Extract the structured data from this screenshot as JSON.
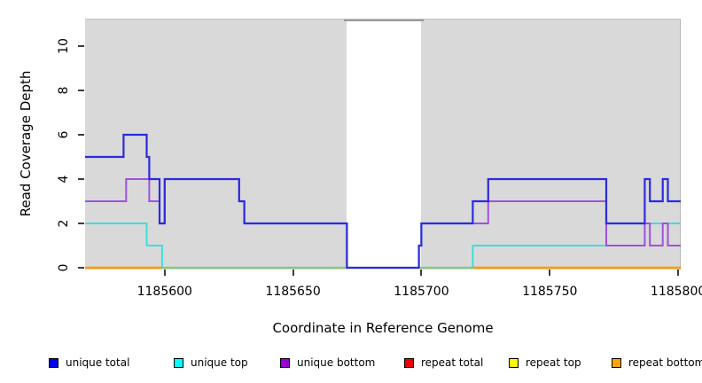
{
  "figure": {
    "background": "#ffffff"
  },
  "axes": {
    "y_title": "Read Coverage Depth",
    "x_title": "Coordinate in Reference Genome"
  },
  "chart_data": {
    "type": "line",
    "step": true,
    "title": "",
    "xlabel": "Coordinate in Reference Genome",
    "ylabel": "Read Coverage Depth",
    "xlim": [
      1185569,
      1185801
    ],
    "ylim": [
      0,
      11.24
    ],
    "grid": false,
    "plot_bg": "#d9d9d9",
    "xticks": [
      {
        "value": 1185600,
        "label": "1185600"
      },
      {
        "value": 1185650,
        "label": "1185650"
      },
      {
        "value": 1185700,
        "label": "1185700"
      },
      {
        "value": 1185750,
        "label": "1185750"
      },
      {
        "value": 1185800,
        "label": "1185800"
      }
    ],
    "yticks": [
      {
        "value": 0,
        "label": "0"
      },
      {
        "value": 2,
        "label": "2"
      },
      {
        "value": 4,
        "label": "4"
      },
      {
        "value": 6,
        "label": "6"
      },
      {
        "value": 8,
        "label": "8"
      },
      {
        "value": 10,
        "label": "10"
      }
    ],
    "uncovered_gap": {
      "from": 1185671,
      "to": 1185700,
      "fill": "#ffffff",
      "top_edge_color": "#999999"
    },
    "series": [
      {
        "name": "unique total",
        "color": "#2b2be0",
        "legend_color": "#0000ee",
        "steps": [
          [
            1185569,
            5
          ],
          [
            1185584,
            6
          ],
          [
            1185593,
            5
          ],
          [
            1185594,
            4
          ],
          [
            1185598,
            2
          ],
          [
            1185600,
            4
          ],
          [
            1185629,
            3
          ],
          [
            1185631,
            2
          ],
          [
            1185671,
            0
          ],
          [
            1185699,
            1
          ],
          [
            1185700,
            2
          ],
          [
            1185720,
            3
          ],
          [
            1185726,
            4
          ],
          [
            1185772,
            2
          ],
          [
            1185787,
            4
          ],
          [
            1185789,
            3
          ],
          [
            1185794,
            4
          ],
          [
            1185796,
            3
          ]
        ],
        "end": 1185801
      },
      {
        "name": "unique top",
        "color": "#3fdede",
        "legend_color": "#00ffff",
        "steps": [
          [
            1185569,
            2
          ],
          [
            1185593,
            1
          ],
          [
            1185599,
            0
          ],
          [
            1185720,
            1
          ],
          [
            1185787,
            2
          ]
        ],
        "end": 1185801
      },
      {
        "name": "unique bottom",
        "color": "#a050e0",
        "legend_color": "#9a00d3",
        "steps": [
          [
            1185569,
            3
          ],
          [
            1185585,
            4
          ],
          [
            1185594,
            3
          ],
          [
            1185598,
            2
          ],
          [
            1185600,
            4
          ],
          [
            1185629,
            3
          ],
          [
            1185631,
            2
          ],
          [
            1185671,
            0
          ],
          [
            1185699,
            1
          ],
          [
            1185700,
            2
          ],
          [
            1185726,
            3
          ],
          [
            1185772,
            1
          ],
          [
            1185787,
            2
          ],
          [
            1185789,
            1
          ],
          [
            1185794,
            2
          ],
          [
            1185796,
            1
          ]
        ],
        "end": 1185801
      },
      {
        "name": "repeat total",
        "color": "#dd1111",
        "legend_color": "#ee0000",
        "steps": [
          [
            1185569,
            0
          ]
        ],
        "end": 1185801
      },
      {
        "name": "repeat top",
        "color": "#ffff00",
        "legend_color": "#ffff00",
        "steps": [
          [
            1185569,
            0
          ]
        ],
        "end": 1185801
      },
      {
        "name": "repeat bottom",
        "color": "#ff9a00",
        "legend_color": "#ffa500",
        "steps": [
          [
            1185569,
            0
          ]
        ],
        "end": 1185801
      }
    ],
    "render_hints": {
      "draw_order": [
        "repeat total",
        "repeat top",
        "unique top",
        "repeat bottom",
        "baseline_blend",
        "unique bottom",
        "unique total"
      ],
      "repeat_bottom_visible_segments": [
        [
          1185569,
          1185599
        ],
        [
          1185720,
          1185801
        ]
      ],
      "baseline_blend": {
        "from": 1185599,
        "to": 1185720,
        "value": 0,
        "color": "#82c882",
        "note": "greenish tint where unique-top and repeat-top overlap at depth 0"
      }
    }
  },
  "legend": {
    "items": [
      {
        "label": "unique total",
        "color": "#0000ee"
      },
      {
        "label": "unique top",
        "color": "#00ffff"
      },
      {
        "label": "unique bottom",
        "color": "#9a00d3"
      },
      {
        "label": "repeat total",
        "color": "#ee0000"
      },
      {
        "label": "repeat top",
        "color": "#ffff00"
      },
      {
        "label": "repeat bottom",
        "color": "#ffa500"
      }
    ]
  }
}
